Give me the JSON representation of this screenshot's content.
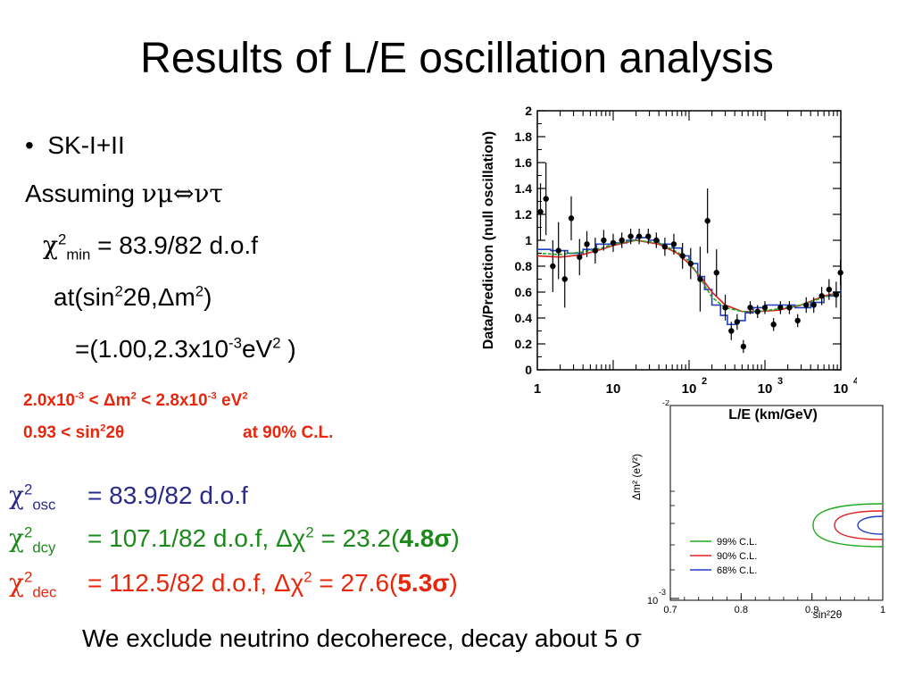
{
  "slide": {
    "title": "Results of L/E oscillation analysis",
    "bullet": "SK-I+II",
    "assuming_prefix": "Assuming ",
    "assuming_expr": "νμ⇔ντ",
    "chi2_min_value": "= 83.9/82 d.o.f",
    "at_prefix": "at(sin",
    "at_mid": "2θ,Δm",
    "at_end": ")",
    "best_fit_prefix": "=(1.00,2.3x10",
    "best_fit_exp": "-3",
    "best_fit_unit": "eV",
    "best_fit_end": " )",
    "range_line1_a": "2.0x10",
    "range_line1_b": " < Δm",
    "range_line1_c": " < 2.8x10",
    "range_line1_d": " eV",
    "range_line2_a": "0.93 < sin",
    "range_line2_b": "2θ",
    "range_line2_c": "at 90% C.L.",
    "osc_sub": "osc",
    "osc_value": "=   83.9/82 d.o.f",
    "dcy_sub": "dcy",
    "dcy_value": "= 107.1/82 d.o.f, Δχ",
    "dcy_delta": " = 23.2(",
    "dcy_sigma": "4.8σ",
    "dec_sub": "dec",
    "dec_value": "= 112.5/82 d.o.f, Δχ",
    "dec_delta": " = 27.6(",
    "dec_sigma": "5.3σ",
    "close_paren": ")",
    "conclusion": "We exclude neutrino decoherece, decay about 5 ",
    "conclusion_sigma": "σ"
  },
  "colors": {
    "red": "#e8260c",
    "green": "#1b8a1b",
    "blue": "#2a2a8c"
  },
  "chart_data": [
    {
      "type": "scatter",
      "ylabel": "Data/Prediction (null oscillation)",
      "xlabel": "L/E (km/GeV)",
      "x_scale": "log",
      "xlim": [
        1,
        10000
      ],
      "ylim": [
        0,
        2
      ],
      "x_ticks": [
        "1",
        "10",
        "10",
        "10",
        "10"
      ],
      "x_tick_exps": [
        "",
        "",
        "2",
        "3",
        "4"
      ],
      "y_ticks": [
        "0",
        "0.2",
        "0.4",
        "0.6",
        "0.8",
        "1",
        "1.2",
        "1.4",
        "1.6",
        "1.8",
        "2"
      ],
      "data_points": [
        {
          "x": 1.1,
          "y": 1.22,
          "err": 0.22
        },
        {
          "x": 1.3,
          "y": 1.32,
          "err": 0.28
        },
        {
          "x": 1.6,
          "y": 0.8,
          "err": 0.2
        },
        {
          "x": 1.9,
          "y": 0.92,
          "err": 0.22
        },
        {
          "x": 2.3,
          "y": 0.7,
          "err": 0.22
        },
        {
          "x": 2.8,
          "y": 1.17,
          "err": 0.17
        },
        {
          "x": 3.6,
          "y": 0.87,
          "err": 0.14
        },
        {
          "x": 4.5,
          "y": 0.97,
          "err": 0.1
        },
        {
          "x": 5.8,
          "y": 0.92,
          "err": 0.1
        },
        {
          "x": 7.5,
          "y": 1.0,
          "err": 0.08
        },
        {
          "x": 10,
          "y": 0.98,
          "err": 0.07
        },
        {
          "x": 13,
          "y": 1.0,
          "err": 0.06
        },
        {
          "x": 17,
          "y": 1.03,
          "err": 0.06
        },
        {
          "x": 22,
          "y": 1.03,
          "err": 0.06
        },
        {
          "x": 29,
          "y": 1.03,
          "err": 0.06
        },
        {
          "x": 37,
          "y": 1.0,
          "err": 0.06
        },
        {
          "x": 48,
          "y": 0.95,
          "err": 0.07
        },
        {
          "x": 63,
          "y": 0.97,
          "err": 0.08
        },
        {
          "x": 82,
          "y": 0.88,
          "err": 0.1
        },
        {
          "x": 105,
          "y": 0.82,
          "err": 0.12
        },
        {
          "x": 140,
          "y": 0.7,
          "err": 0.25
        },
        {
          "x": 175,
          "y": 1.15,
          "err": 0.25
        },
        {
          "x": 230,
          "y": 0.75,
          "err": 0.18
        },
        {
          "x": 300,
          "y": 0.48,
          "err": 0.1
        },
        {
          "x": 360,
          "y": 0.3,
          "err": 0.07
        },
        {
          "x": 430,
          "y": 0.37,
          "err": 0.06
        },
        {
          "x": 520,
          "y": 0.18,
          "err": 0.05
        },
        {
          "x": 640,
          "y": 0.48,
          "err": 0.05
        },
        {
          "x": 800,
          "y": 0.45,
          "err": 0.05
        },
        {
          "x": 1000,
          "y": 0.48,
          "err": 0.05
        },
        {
          "x": 1300,
          "y": 0.35,
          "err": 0.05
        },
        {
          "x": 1600,
          "y": 0.48,
          "err": 0.05
        },
        {
          "x": 2100,
          "y": 0.48,
          "err": 0.05
        },
        {
          "x": 2700,
          "y": 0.38,
          "err": 0.05
        },
        {
          "x": 3500,
          "y": 0.5,
          "err": 0.06
        },
        {
          "x": 4400,
          "y": 0.5,
          "err": 0.06
        },
        {
          "x": 5600,
          "y": 0.57,
          "err": 0.07
        },
        {
          "x": 7000,
          "y": 0.62,
          "err": 0.08
        },
        {
          "x": 8700,
          "y": 0.58,
          "err": 0.1
        },
        {
          "x": 9900,
          "y": 0.75,
          "err": 0.1
        }
      ],
      "curves": [
        {
          "color": "#1f3fc8",
          "step": true,
          "points": [
            [
              1,
              0.93
            ],
            [
              1.5,
              0.92
            ],
            [
              2.5,
              0.9
            ],
            [
              4,
              0.93
            ],
            [
              6,
              0.97
            ],
            [
              10,
              0.98
            ],
            [
              15,
              1.0
            ],
            [
              20,
              1.02
            ],
            [
              30,
              1.0
            ],
            [
              40,
              0.97
            ],
            [
              60,
              0.94
            ],
            [
              80,
              0.88
            ],
            [
              100,
              0.82
            ],
            [
              130,
              0.72
            ],
            [
              160,
              0.62
            ],
            [
              200,
              0.5
            ],
            [
              260,
              0.42
            ],
            [
              320,
              0.35
            ],
            [
              420,
              0.38
            ],
            [
              550,
              0.44
            ],
            [
              700,
              0.48
            ],
            [
              1000,
              0.5
            ],
            [
              1500,
              0.5
            ],
            [
              2500,
              0.48
            ],
            [
              4000,
              0.52
            ],
            [
              6000,
              0.57
            ],
            [
              8000,
              0.6
            ],
            [
              10000,
              0.62
            ]
          ]
        },
        {
          "color": "#e02020",
          "step": false,
          "points": [
            [
              1,
              0.88
            ],
            [
              2,
              0.87
            ],
            [
              4,
              0.89
            ],
            [
              7,
              0.93
            ],
            [
              10,
              0.96
            ],
            [
              20,
              1.0
            ],
            [
              40,
              0.97
            ],
            [
              70,
              0.9
            ],
            [
              100,
              0.82
            ],
            [
              150,
              0.7
            ],
            [
              200,
              0.6
            ],
            [
              300,
              0.5
            ],
            [
              500,
              0.45
            ],
            [
              800,
              0.45
            ],
            [
              1500,
              0.46
            ],
            [
              3000,
              0.5
            ],
            [
              6000,
              0.57
            ],
            [
              10000,
              0.6
            ]
          ]
        },
        {
          "color": "#1fa81f",
          "step": false,
          "dashed": true,
          "points": [
            [
              1,
              0.9
            ],
            [
              2,
              0.89
            ],
            [
              4,
              0.91
            ],
            [
              7,
              0.94
            ],
            [
              10,
              0.97
            ],
            [
              20,
              1.0
            ],
            [
              40,
              0.98
            ],
            [
              70,
              0.91
            ],
            [
              100,
              0.84
            ],
            [
              150,
              0.68
            ],
            [
              200,
              0.56
            ],
            [
              300,
              0.48
            ],
            [
              500,
              0.45
            ],
            [
              800,
              0.45
            ],
            [
              1500,
              0.47
            ],
            [
              3000,
              0.5
            ],
            [
              6000,
              0.56
            ],
            [
              10000,
              0.6
            ]
          ]
        }
      ]
    },
    {
      "type": "contour",
      "ylabel": "Δm² (eV²)",
      "xlabel": "sin²2θ",
      "x_ticks": [
        "0.7",
        "0.8",
        "0.9",
        "1"
      ],
      "y_tick_label": "10",
      "y_tick_exp": "-3",
      "top_tick_exp": "-2",
      "legend": [
        {
          "label": "99% C.L.",
          "color": "#1fa81f"
        },
        {
          "label": "90% C.L.",
          "color": "#e02020"
        },
        {
          "label": "68% C.L.",
          "color": "#1f3fc8"
        }
      ]
    }
  ]
}
